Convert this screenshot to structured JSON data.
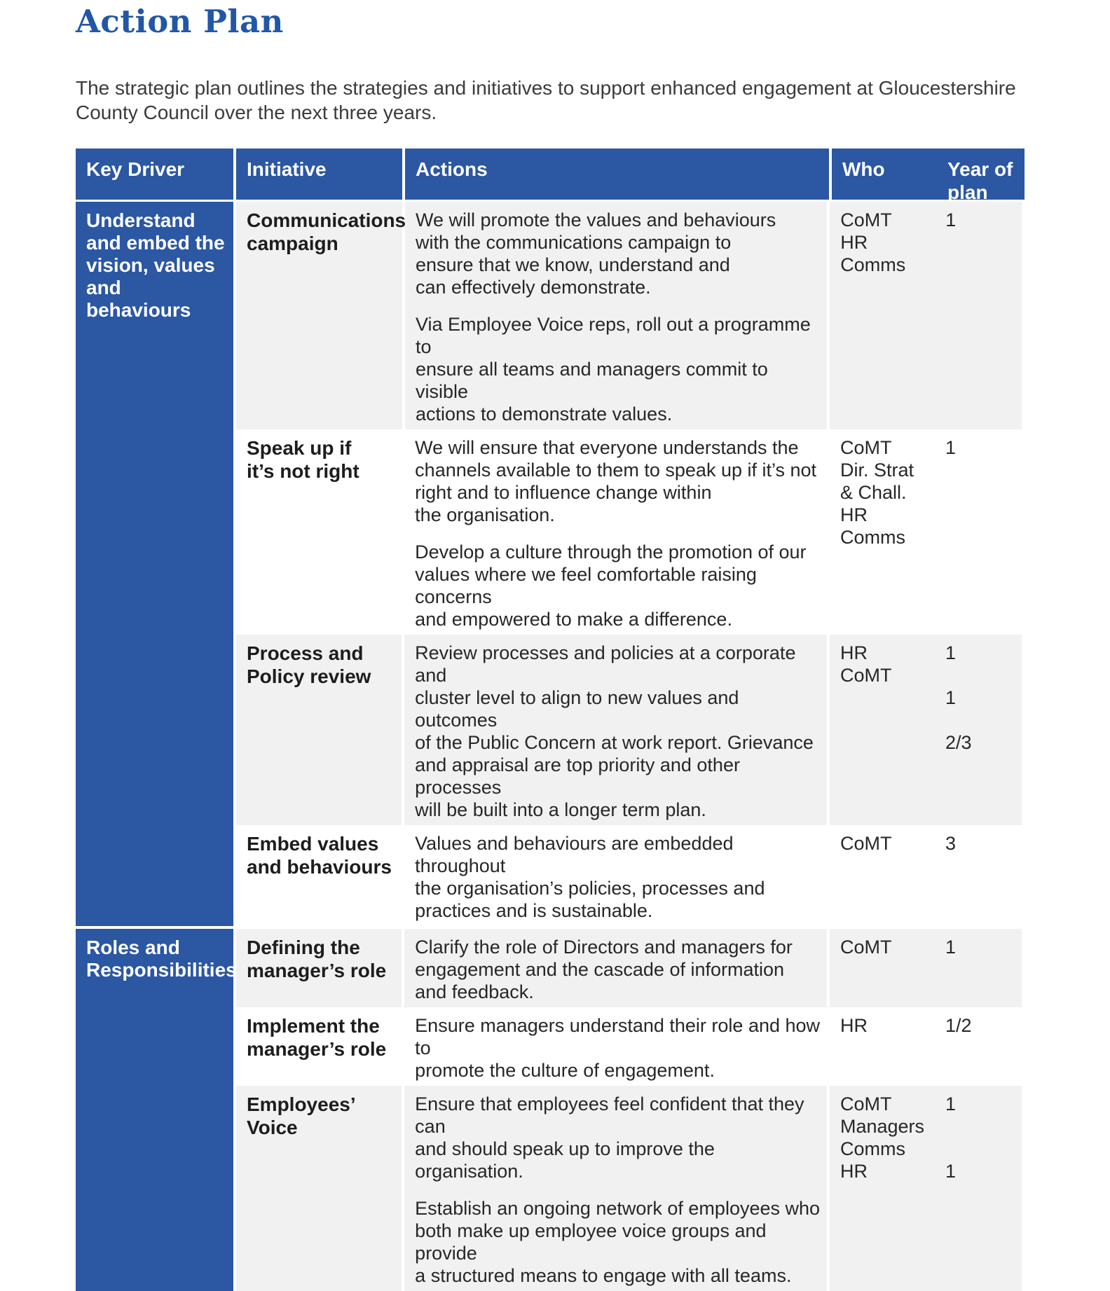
{
  "title": "Action Plan",
  "intro": "The strategic plan outlines the strategies and initiatives to support enhanced engagement at Gloucestershire County Council over the next three years.",
  "colors": {
    "header_blue": "#2b57a3",
    "title_blue": "#2157a6",
    "row_gray": "#f1f1f2"
  },
  "table": {
    "headers": {
      "key_driver": "Key Driver",
      "initiative": "Initiative",
      "actions": "Actions",
      "who": "Who",
      "year": "Year of plan"
    },
    "sections": [
      {
        "driver": "Understand\nand embed the\nvision, values\nand behaviours",
        "rows": [
          {
            "initiative": "Communications\ncampaign",
            "paragraphs": [
              "We will promote the values and behaviours\nwith the communications campaign to\nensure that we know, understand and\ncan effectively demonstrate.",
              "Via Employee Voice reps, roll out a programme to\nensure all teams and managers commit to visible\nactions to demonstrate values."
            ],
            "who": "CoMT\nHR\nComms",
            "year": "1"
          },
          {
            "initiative": "Speak up if\nit’s not right",
            "paragraphs": [
              "We will ensure that everyone understands the\nchannels available to them to speak up if it’s not\nright and to influence change within\nthe organisation.",
              "Develop a culture through the promotion of our\nvalues where we feel comfortable raising concerns\nand empowered to make a difference."
            ],
            "who": "CoMT\nDir. Strat\n& Chall.\nHR\nComms",
            "year": "1"
          },
          {
            "initiative": "Process and\nPolicy review",
            "paragraphs": [
              "Review processes and policies at a corporate and\ncluster level to align to new values and outcomes\nof the Public Concern at work report. Grievance\nand appraisal are top priority and other processes\nwill be built into a longer term plan."
            ],
            "who": "HR\nCoMT",
            "year": "1\n\n1\n\n2/3"
          },
          {
            "initiative": "Embed values\nand behaviours",
            "paragraphs": [
              "Values and behaviours are embedded throughout\nthe organisation’s policies, processes and\npractices and is sustainable."
            ],
            "who": "CoMT",
            "year": "3"
          }
        ]
      },
      {
        "driver": "Roles and\nResponsibilities",
        "rows": [
          {
            "initiative": "Defining the\nmanager’s role",
            "paragraphs": [
              "Clarify the role of Directors and managers for\nengagement and the cascade of information\nand feedback."
            ],
            "who": "CoMT",
            "year": "1"
          },
          {
            "initiative": "Implement the\nmanager’s role",
            "paragraphs": [
              "Ensure managers understand their role and how to\npromote the culture of engagement."
            ],
            "who": "HR",
            "year": "1/2"
          },
          {
            "initiative": "Employees’\nVoice",
            "paragraphs": [
              "Ensure that employees feel confident that they can\nand should speak up to improve the organisation.",
              "Establish an ongoing network of employees who\nboth make up employee voice groups and provide\na structured means to engage with all teams."
            ],
            "who": "CoMT\nManagers\nComms\nHR",
            "year": "1\n\n\n1"
          }
        ]
      }
    ]
  }
}
